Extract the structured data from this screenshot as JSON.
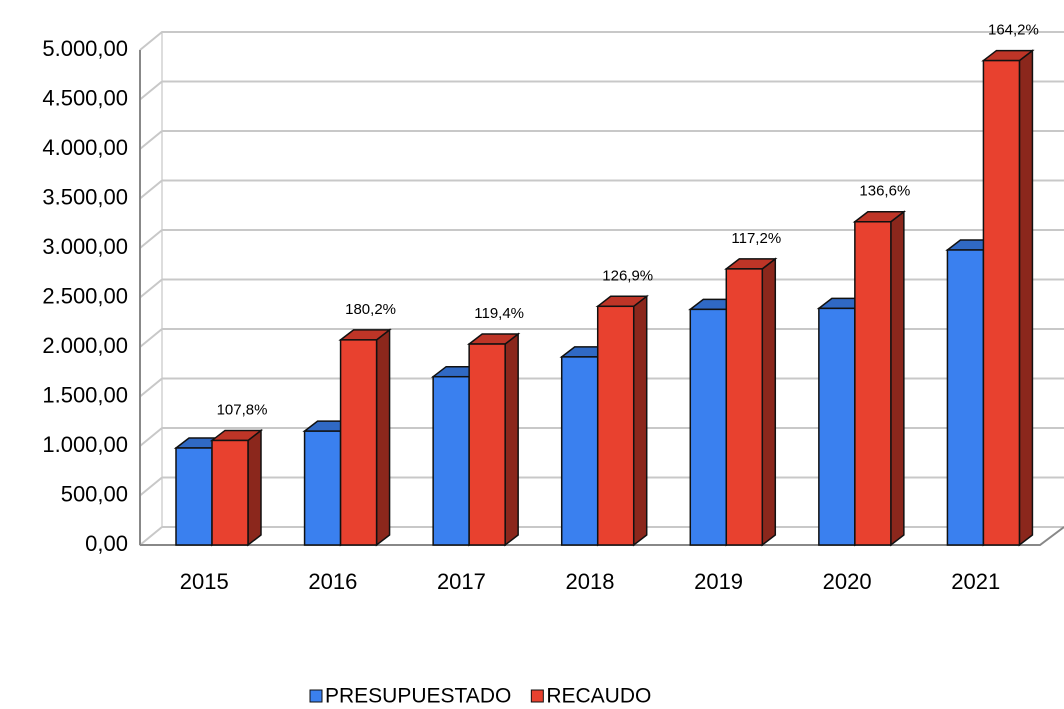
{
  "chart_data": {
    "type": "bar3d",
    "categories": [
      "2015",
      "2016",
      "2017",
      "2018",
      "2019",
      "2020",
      "2021"
    ],
    "series": [
      {
        "name": "PRESUPUESTADO",
        "color": "#3a80ef",
        "values": [
          980,
          1150,
          1700,
          1900,
          2380,
          2390,
          2980
        ]
      },
      {
        "name": "RECAUDO",
        "color": "#e8412f",
        "values": [
          1056,
          2072,
          2030,
          2411,
          2789,
          3265,
          4893
        ]
      }
    ],
    "annotations": [
      "107,8%",
      "180,2%",
      "119,4%",
      "126,9%",
      "117,2%",
      "136,6%",
      "164,2%"
    ],
    "ylim": [
      0,
      5000
    ],
    "yticks": [
      {
        "value": 0,
        "label": "0,00"
      },
      {
        "value": 500,
        "label": "500,00"
      },
      {
        "value": 1000,
        "label": "1.000,00"
      },
      {
        "value": 1500,
        "label": "1.500,00"
      },
      {
        "value": 2000,
        "label": "2.000,00"
      },
      {
        "value": 2500,
        "label": "2.500,00"
      },
      {
        "value": 3000,
        "label": "3.000,00"
      },
      {
        "value": 3500,
        "label": "3.500,00"
      },
      {
        "value": 4000,
        "label": "4.000,00"
      },
      {
        "value": 4500,
        "label": "4.500,00"
      },
      {
        "value": 5000,
        "label": "5.000,00"
      }
    ],
    "grid": true,
    "legend": "bottom"
  }
}
